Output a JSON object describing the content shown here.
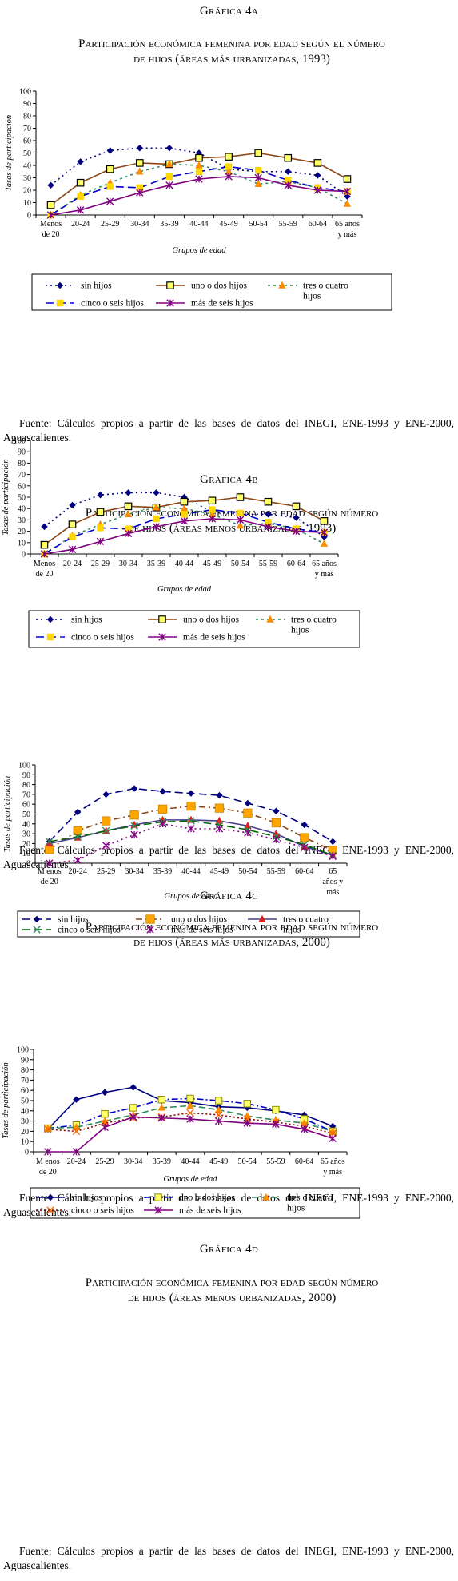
{
  "chart_data": [
    {
      "type": "line",
      "graph_label": "GRÁFICA 4A",
      "title": "PARTICIPACIÓN ECONÓMICA FEMENINA POR EDAD SEGÚN EL NÚMERO DE HIJOS (ÁREAS MÁS URBANIZADAS, 1993)",
      "title_lines": [
        "Participación económica femenina por edad según el número",
        "de hijos (áreas más urbanizadas, 1993)"
      ],
      "graph_label_text": "Gráfica 4a",
      "ylabel": "Tasas de participación",
      "xlabel": "Grupos de edad",
      "ylim": [
        0,
        100
      ],
      "yticks": [
        "0",
        "10",
        "20",
        "30",
        "40",
        "50",
        "60",
        "70",
        "80",
        "90",
        "100"
      ],
      "categories": [
        [
          "Menos",
          "de 20"
        ],
        [
          "20-24"
        ],
        [
          "25-29"
        ],
        [
          "30-34"
        ],
        [
          "35-39"
        ],
        [
          "40-44"
        ],
        [
          "45-49"
        ],
        [
          "50-54"
        ],
        [
          "55-59"
        ],
        [
          "60-64"
        ],
        [
          "65 años",
          "y más"
        ]
      ],
      "grid": false,
      "series": [
        {
          "name": "sin hijos",
          "color": "#00007f",
          "dash": "2,4",
          "marker": "diamond",
          "values": [
            24,
            43,
            52,
            54,
            54,
            50,
            37,
            35,
            35,
            32,
            15
          ]
        },
        {
          "name": "uno o dos hijos",
          "color": "#8b4513",
          "dash": "",
          "marker": "square-open",
          "values": [
            8,
            26,
            37,
            42,
            41,
            46,
            47,
            50,
            46,
            42,
            29
          ]
        },
        {
          "name": "tres o cuatro hijos",
          "color": "#2e8b57",
          "dash": "3,4",
          "marker": "triangle",
          "values": [
            0,
            16,
            26,
            35,
            41,
            40,
            35,
            25,
            27,
            22,
            9
          ]
        },
        {
          "name": "cinco o seis hijos",
          "color": "#0000cd",
          "dash": "10,5",
          "marker": "square",
          "values": [
            0,
            15,
            23,
            22,
            31,
            35,
            39,
            36,
            28,
            22,
            19
          ]
        },
        {
          "name": "más de seis hijos",
          "color": "#800080",
          "dash": "",
          "marker": "star",
          "values": [
            0,
            4,
            11,
            18,
            24,
            29,
            31,
            30,
            24,
            20,
            19
          ]
        }
      ],
      "legend_rows": [
        [
          "sin hijos",
          "uno o dos hijos",
          "tres o cuatro hijos"
        ],
        [
          "cinco o seis hijos",
          "más de seis hijos"
        ]
      ],
      "source": "Fuente: Cálculos propios a partir de las bases de datos del INEGI, ENE-1993 y ENE-2000, Aguascalientes."
    },
    {
      "type": "line",
      "graph_label_text": "Gráfica 4b",
      "title_lines": [
        "Participación económica femenina por edad según número",
        "de hijos (áreas menos urbanizadas, 1993)"
      ],
      "ylabel": "Tasas de participación",
      "xlabel": "Grupos de edad",
      "ylim": [
        0,
        100
      ],
      "yticks": [
        "0",
        "10",
        "20",
        "30",
        "40",
        "50",
        "60",
        "70",
        "80",
        "90",
        "100"
      ],
      "categories": [
        [
          "Menos",
          "de 20"
        ],
        [
          "20-24"
        ],
        [
          "25-29"
        ],
        [
          "30-34"
        ],
        [
          "35-39"
        ],
        [
          "40-44"
        ],
        [
          "45-49"
        ],
        [
          "50-54"
        ],
        [
          "55-59"
        ],
        [
          "60-64"
        ],
        [
          "65 años",
          "y más"
        ]
      ],
      "grid": false,
      "series": [
        {
          "name": "sin hijos",
          "color": "#00007f",
          "dash": "2,4",
          "marker": "diamond",
          "values": [
            24,
            43,
            52,
            54,
            54,
            50,
            37,
            35,
            35,
            32,
            15
          ]
        },
        {
          "name": "uno o dos hijos",
          "color": "#8b4513",
          "dash": "",
          "marker": "square-open",
          "values": [
            8,
            26,
            37,
            42,
            41,
            46,
            47,
            50,
            46,
            42,
            29
          ]
        },
        {
          "name": "tres o cuatro hijos",
          "color": "#2e8b57",
          "dash": "3,4",
          "marker": "triangle",
          "values": [
            0,
            16,
            26,
            35,
            41,
            40,
            35,
            25,
            27,
            22,
            9
          ]
        },
        {
          "name": "cinco o seis hijos",
          "color": "#0000cd",
          "dash": "10,5",
          "marker": "square",
          "values": [
            0,
            15,
            23,
            22,
            31,
            35,
            39,
            36,
            28,
            22,
            19
          ]
        },
        {
          "name": "más de seis hijos",
          "color": "#800080",
          "dash": "",
          "marker": "star",
          "values": [
            0,
            4,
            11,
            18,
            24,
            29,
            31,
            30,
            24,
            20,
            19
          ]
        }
      ],
      "legend_rows": [
        [
          "sin hijos",
          "uno o dos hijos",
          "tres o cuatro hijos"
        ],
        [
          "cinco o seis hijos",
          "más de seis hijos"
        ]
      ],
      "source": "Fuente: Cálculos propios a partir de las bases de datos del INEGI, ENE-1993 y ENE-2000, Aguascalientes."
    },
    {
      "type": "line",
      "graph_label_text": "Gráfica 4c",
      "title_lines": [
        "Participación económica femenina por edad según número",
        "de hijos (áreas más urbanizadas, 2000)"
      ],
      "ylabel": "Tasas de participación",
      "xlabel": "Grupos de edad",
      "ylim": [
        0,
        100
      ],
      "yticks": [
        "0",
        "10",
        "20",
        "30",
        "40",
        "50",
        "60",
        "70",
        "80",
        "90",
        "100"
      ],
      "categories": [
        [
          "M enos",
          "de 20"
        ],
        [
          "20-24"
        ],
        [
          "25-29"
        ],
        [
          "30-34"
        ],
        [
          "35-39"
        ],
        [
          "40-44"
        ],
        [
          "45-49"
        ],
        [
          "50-54"
        ],
        [
          "55-59"
        ],
        [
          "60-64"
        ],
        [
          "65",
          "años y",
          "más"
        ]
      ],
      "grid": false,
      "series": [
        {
          "name": "sin hijos",
          "color": "#00007f",
          "dash": "10,5",
          "marker": "diamond",
          "values": [
            22,
            52,
            70,
            76,
            73,
            71,
            69,
            61,
            53,
            39,
            22
          ]
        },
        {
          "name": "uno o dos hijos",
          "color": "#8b4513",
          "dash": "8,4,2,4",
          "marker": "square-orange",
          "values": [
            14,
            33,
            43,
            49,
            55,
            58,
            56,
            51,
            41,
            26,
            13
          ]
        },
        {
          "name": "tres o cuatro hijos",
          "color": "#483d8b",
          "dash": "",
          "marker": "triangle-red",
          "values": [
            20,
            26,
            33,
            39,
            44,
            44,
            43,
            38,
            30,
            17,
            8
          ]
        },
        {
          "name": "cinco o seis hijos",
          "color": "#006400",
          "dash": "10,5",
          "marker": "cross-green",
          "values": [
            22,
            27,
            33,
            38,
            42,
            43,
            39,
            34,
            27,
            19,
            8
          ]
        },
        {
          "name": "más de seis hijos",
          "color": "#800080",
          "dash": "2,4",
          "marker": "star",
          "values": [
            0,
            3,
            18,
            29,
            40,
            35,
            35,
            31,
            24,
            16,
            7
          ]
        }
      ],
      "legend_rows": [
        [
          "sin hijos",
          "uno o dos hijos",
          "tres o cuatro hijos"
        ],
        [
          "cinco o seis hijos",
          "más de seis hijos"
        ]
      ],
      "source": "Fuente: Cálculos propios a partir de las bases de datos del INEGI, ENE-1993 y ENE-2000, Aguascalientes."
    },
    {
      "type": "line",
      "graph_label_text": "Gráfica 4d",
      "title_lines": [
        "Participación económica femenina por edad según número",
        "de hijos (áreas menos urbanizadas, 2000)"
      ],
      "ylabel": "Tasas de participación",
      "xlabel": "Grupos de edad",
      "ylim": [
        0,
        100
      ],
      "yticks": [
        "0",
        "10",
        "20",
        "30",
        "40",
        "50",
        "60",
        "70",
        "80",
        "90",
        "100"
      ],
      "categories": [
        [
          "M enos",
          "de 20"
        ],
        [
          "20-24"
        ],
        [
          "25-29"
        ],
        [
          "30-34"
        ],
        [
          "35-39"
        ],
        [
          "40-44"
        ],
        [
          "45-49"
        ],
        [
          "50-54"
        ],
        [
          "55-59"
        ],
        [
          "60-64"
        ],
        [
          "65 años",
          "y más"
        ]
      ],
      "grid": false,
      "series": [
        {
          "name": "sin hijos",
          "color": "#00007f",
          "dash": "",
          "marker": "diamond",
          "values": [
            22,
            51,
            58,
            63,
            50,
            48,
            44,
            43,
            40,
            36,
            25
          ]
        },
        {
          "name": "uno o dos hijos",
          "color": "#0000cd",
          "dash": "8,3,2,3",
          "marker": "square-yellow",
          "values": [
            23,
            26,
            37,
            43,
            51,
            52,
            50,
            47,
            41,
            32,
            20
          ]
        },
        {
          "name": "tres o cuatro hijos",
          "color": "#2e8b57",
          "dash": "8,4",
          "marker": "triangle-orange",
          "values": [
            23,
            24,
            30,
            36,
            43,
            45,
            41,
            35,
            31,
            28,
            20
          ]
        },
        {
          "name": "cinco o seis hijos",
          "color": "#8b0000",
          "dash": "2,3",
          "marker": "x-orange",
          "values": [
            22,
            20,
            28,
            33,
            34,
            38,
            36,
            32,
            29,
            25,
            18
          ]
        },
        {
          "name": "más de seis hijos",
          "color": "#800080",
          "dash": "",
          "marker": "star",
          "values": [
            0,
            0,
            24,
            34,
            33,
            32,
            30,
            28,
            27,
            22,
            13
          ]
        }
      ],
      "legend_rows": [
        [
          "sin hijos",
          "uno o dos hijos",
          "tres o cuatro hijos"
        ],
        [
          "cinco o seis hijos",
          "más de seis hijos"
        ]
      ],
      "source": "Fuente: Cálculos propios a partir de las bases de datos del INEGI, ENE-1993 y ENE-2000, Aguascalientes."
    }
  ]
}
